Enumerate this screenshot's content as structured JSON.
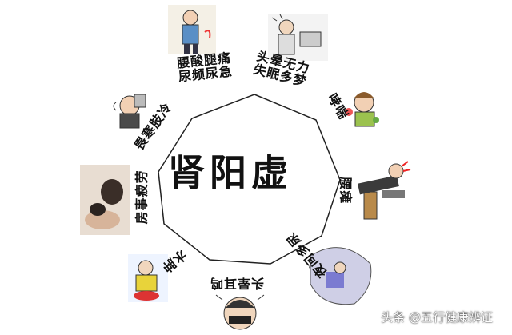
{
  "center_title": "肾阳虚",
  "symptoms": [
    {
      "key": "waist",
      "lines": [
        "腰酸腿痛",
        "尿频尿急"
      ]
    },
    {
      "key": "dizzy",
      "lines": [
        "头晕无力",
        "失眠多梦"
      ]
    },
    {
      "key": "asthma",
      "lines": [
        "哮喘"
      ]
    },
    {
      "key": "paralysis",
      "lines": [
        "腰瘫"
      ]
    },
    {
      "key": "nocturia",
      "lines": [
        "夜间多尿"
      ]
    },
    {
      "key": "tinnitus",
      "lines": [
        "头晕耳鸣"
      ]
    },
    {
      "key": "edema",
      "lines": [
        "水肿"
      ]
    },
    {
      "key": "sexual",
      "lines": [
        "房事疲劳"
      ]
    },
    {
      "key": "cold",
      "lines": [
        "畏寒肢冷"
      ]
    }
  ],
  "watermark": "头条 @五行健康辨证",
  "colors": {
    "text": "#111111",
    "polygon": "#222222",
    "background": "#ffffff"
  }
}
